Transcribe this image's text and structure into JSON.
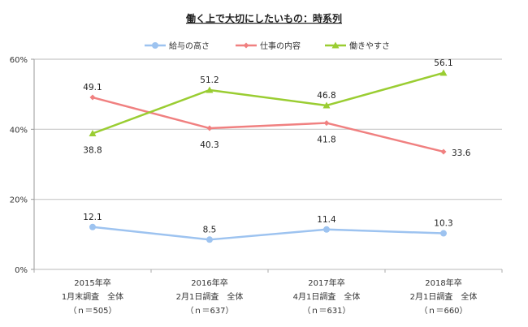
{
  "chart_data": {
    "type": "line",
    "title": "働く上で大切にしたいもの：時系列",
    "xlabel": "",
    "ylabel": "",
    "ylim": [
      0,
      60
    ],
    "yticks": [
      0,
      20,
      40,
      60
    ],
    "ytick_labels": [
      "0%",
      "20%",
      "40%",
      "60%"
    ],
    "grid": true,
    "legend_position": "top-center",
    "categories": [
      [
        "2015年卒",
        "1月末調査　全体",
        "（ｎ＝505）"
      ],
      [
        "2016年卒",
        "2月1日調査　全体",
        "（ｎ＝637）"
      ],
      [
        "2017年卒",
        "4月1日調査　全体",
        "（ｎ＝631）"
      ],
      [
        "2018年卒",
        "2月1日調査　全体",
        "（ｎ＝660）"
      ]
    ],
    "series": [
      {
        "name": "給与の高さ",
        "color": "#9dc3f0",
        "marker": "circle",
        "values": [
          12.1,
          8.5,
          11.4,
          10.3
        ],
        "label_pos": "above"
      },
      {
        "name": "仕事の内容",
        "color": "#f08080",
        "marker": "diamond",
        "values": [
          49.1,
          40.3,
          41.8,
          33.6
        ],
        "label_pos": [
          "above",
          "below",
          "below",
          "right"
        ]
      },
      {
        "name": "働きやすさ",
        "color": "#9acd32",
        "marker": "triangle",
        "values": [
          38.8,
          51.2,
          46.8,
          56.1
        ],
        "label_pos": [
          "below",
          "above",
          "above",
          "above"
        ]
      }
    ]
  }
}
